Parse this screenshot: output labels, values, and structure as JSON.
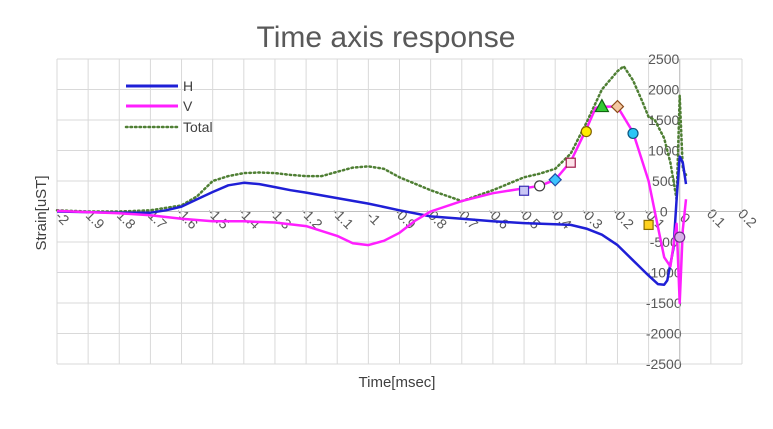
{
  "chart_data": {
    "type": "line",
    "title": "Time axis response",
    "xlabel": "Time[msec]",
    "ylabel": "Strain[uST]",
    "xlim": [
      -2,
      0.2
    ],
    "ylim": [
      -2500,
      2500
    ],
    "x_ticks": [
      -2,
      -1.9,
      -1.8,
      -1.7,
      -1.6,
      -1.5,
      -1.4,
      -1.3,
      -1.2,
      -1.1,
      -1,
      -0.9,
      -0.8,
      -0.7,
      -0.6,
      -0.5,
      -0.4,
      -0.3,
      -0.2,
      -0.1,
      0,
      0.1,
      0.2
    ],
    "x_tick_labels": [
      "-2",
      "-1.9",
      "-1.8",
      "-1.7",
      "-1.6",
      "-1.5",
      "-1.4",
      "-1.3",
      "-1.2",
      "-1.1",
      "-1",
      "-0.9",
      "-0.8",
      "-0.7",
      "-0.6",
      "-0.5",
      "-0.4",
      "-0.3",
      "-0.2",
      "-0.1",
      "0",
      "0.1",
      "0.2"
    ],
    "y_ticks": [
      -2500,
      -2000,
      -1500,
      -1000,
      -500,
      0,
      500,
      1000,
      1500,
      2000,
      2500
    ],
    "y_tick_labels": [
      "-2500",
      "-2000",
      "-1500",
      "-1000",
      "-500",
      "0",
      "500",
      "1000",
      "1500",
      "2000",
      "2500"
    ],
    "grid": true,
    "legend_position": "top-left",
    "series": [
      {
        "name": "H",
        "color": "#1f1fd6",
        "style": "solid",
        "x": [
          -2,
          -1.9,
          -1.8,
          -1.7,
          -1.65,
          -1.6,
          -1.55,
          -1.5,
          -1.45,
          -1.4,
          -1.35,
          -1.3,
          -1.25,
          -1.2,
          -1.1,
          -1.0,
          -0.9,
          -0.8,
          -0.7,
          -0.6,
          -0.5,
          -0.4,
          -0.35,
          -0.3,
          -0.25,
          -0.2,
          -0.15,
          -0.1,
          -0.07,
          -0.05,
          -0.04,
          -0.02,
          -0.01,
          0,
          0.01,
          0.02
        ],
        "y": [
          0,
          -10,
          -20,
          -20,
          20,
          80,
          200,
          320,
          430,
          470,
          450,
          400,
          350,
          310,
          220,
          130,
          20,
          -80,
          -120,
          -160,
          -190,
          -210,
          -220,
          -280,
          -380,
          -550,
          -800,
          -1050,
          -1190,
          -1200,
          -1130,
          -600,
          200,
          900,
          800,
          450
        ]
      },
      {
        "name": "V",
        "color": "#ff1fff",
        "style": "solid",
        "x": [
          -2,
          -1.9,
          -1.8,
          -1.7,
          -1.6,
          -1.5,
          -1.4,
          -1.3,
          -1.2,
          -1.1,
          -1.05,
          -1.0,
          -0.95,
          -0.9,
          -0.85,
          -0.8,
          -0.7,
          -0.6,
          -0.5,
          -0.45,
          -0.4,
          -0.35,
          -0.3,
          -0.27,
          -0.25,
          -0.2,
          -0.15,
          -0.1,
          -0.07,
          -0.05,
          -0.03,
          -0.01,
          0,
          0.01,
          0.02
        ],
        "y": [
          10,
          -10,
          -30,
          -60,
          -120,
          -160,
          -160,
          -180,
          -240,
          -400,
          -520,
          -550,
          -480,
          -350,
          -150,
          0,
          170,
          300,
          380,
          420,
          520,
          820,
          1350,
          1700,
          1720,
          1720,
          1300,
          500,
          -250,
          -750,
          -900,
          -200,
          -1500,
          -300,
          200
        ]
      },
      {
        "name": "Total",
        "color": "#4f7f34",
        "style": "dotted",
        "x": [
          -2,
          -1.9,
          -1.8,
          -1.7,
          -1.6,
          -1.55,
          -1.5,
          -1.45,
          -1.4,
          -1.35,
          -1.3,
          -1.25,
          -1.2,
          -1.15,
          -1.1,
          -1.05,
          -1.0,
          -0.95,
          -0.9,
          -0.8,
          -0.7,
          -0.6,
          -0.5,
          -0.45,
          -0.4,
          -0.35,
          -0.3,
          -0.25,
          -0.2,
          -0.18,
          -0.15,
          -0.12,
          -0.1,
          -0.08,
          -0.05,
          -0.03,
          -0.01,
          0,
          0.01,
          0.02
        ],
        "y": [
          20,
          0,
          0,
          20,
          100,
          250,
          500,
          580,
          630,
          640,
          630,
          600,
          580,
          580,
          650,
          720,
          740,
          700,
          560,
          350,
          170,
          350,
          560,
          620,
          700,
          950,
          1450,
          2000,
          2300,
          2380,
          2150,
          1800,
          1550,
          1500,
          1200,
          800,
          200,
          1900,
          700,
          600
        ]
      }
    ],
    "markers": [
      {
        "x": -0.5,
        "y": 340,
        "shape": "square",
        "color": "#c9c6f5",
        "stroke": "#3a2fb5"
      },
      {
        "x": -0.45,
        "y": 420,
        "shape": "circle",
        "color": "#ffffff",
        "stroke": "#404040"
      },
      {
        "x": -0.4,
        "y": 520,
        "shape": "diamond",
        "color": "#3cc3ff",
        "stroke": "#1f4fa5"
      },
      {
        "x": -0.35,
        "y": 800,
        "shape": "square",
        "color": "#fde2ea",
        "stroke": "#a01a4a"
      },
      {
        "x": -0.3,
        "y": 1310,
        "shape": "circle",
        "color": "#ffee00",
        "stroke": "#806000"
      },
      {
        "x": -0.25,
        "y": 1720,
        "shape": "triangle",
        "color": "#33cc33",
        "stroke": "#116611"
      },
      {
        "x": -0.2,
        "y": 1720,
        "shape": "diamond",
        "color": "#f4c8a0",
        "stroke": "#8b4a1a"
      },
      {
        "x": -0.15,
        "y": 1280,
        "shape": "circle",
        "color": "#29c5f6",
        "stroke": "#0d5580"
      },
      {
        "x": -0.1,
        "y": -220,
        "shape": "square",
        "color": "#ffd21f",
        "stroke": "#8a6d00"
      },
      {
        "x": 0.0,
        "y": -420,
        "shape": "circle",
        "color": "#d8b0e8",
        "stroke": "#6d2f8a"
      }
    ]
  }
}
